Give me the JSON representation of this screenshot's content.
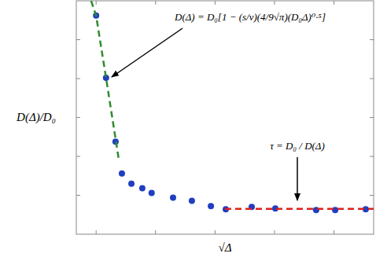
{
  "chart_data": {
    "type": "scatter",
    "x_label": "√Δ",
    "y_label": "D(Δ)/D₀",
    "xlim": [
      0,
      15
    ],
    "ylim": [
      0,
      6
    ],
    "xticks": [
      1,
      4,
      7,
      10,
      13
    ],
    "yticks": [
      1,
      2,
      3,
      4,
      5
    ],
    "tick_labels": false,
    "grid": false,
    "series": [
      {
        "type": "scatter",
        "marker": "circle",
        "color": "#1f3fbf",
        "x": [
          1.0,
          1.5,
          1.98,
          2.3,
          2.78,
          3.33,
          3.8,
          4.88,
          5.83,
          6.79,
          7.54,
          8.85,
          10.04,
          12.1,
          13.06,
          14.6
        ],
        "values": [
          5.62,
          4.02,
          2.38,
          1.56,
          1.3,
          1.18,
          1.06,
          0.94,
          0.86,
          0.72,
          0.64,
          0.7,
          0.66,
          0.62,
          0.62,
          0.64
        ]
      },
      {
        "type": "line",
        "line_style": "dashed",
        "color": "#2e8b2e",
        "x": [
          0.75,
          1.0,
          1.5,
          2.15
        ],
        "values": [
          6.0,
          5.62,
          4.02,
          1.9
        ]
      },
      {
        "type": "line",
        "line_style": "dashed",
        "color": "#e0201b",
        "x": [
          7.5,
          15.0
        ],
        "values": [
          0.65,
          0.65
        ]
      }
    ],
    "annotations": [
      {
        "text": "D(Δ) = D₀[1 − (s/ν)(4/9√π)(D₀Δ)⁰·⁵]"
      },
      {
        "text": "τ = D₀ / D(Δ)"
      }
    ]
  }
}
